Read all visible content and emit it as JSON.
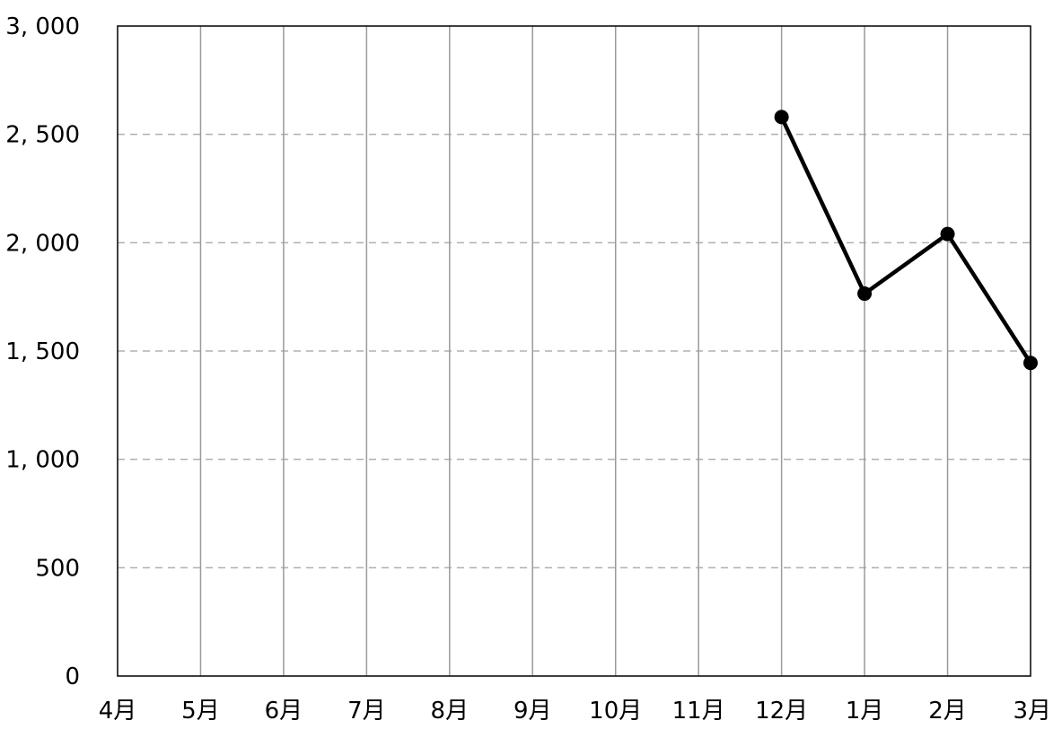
{
  "chart_data": {
    "type": "line",
    "title": "",
    "xlabel": "",
    "ylabel": "",
    "categories": [
      "4月",
      "5月",
      "6月",
      "7月",
      "8月",
      "9月",
      "10月",
      "11月",
      "12月",
      "1月",
      "2月",
      "3月"
    ],
    "y_tick_labels": [
      "0",
      "500",
      "1, 000",
      "1, 500",
      "2, 000",
      "2, 500",
      "3, 000"
    ],
    "y_ticks": [
      0,
      500,
      1000,
      1500,
      2000,
      2500,
      3000
    ],
    "ylim": [
      0,
      3000
    ],
    "series": [
      {
        "values": [
          null,
          null,
          null,
          null,
          null,
          null,
          null,
          null,
          2580,
          1765,
          2040,
          1445
        ]
      }
    ],
    "grid": {
      "horizontal": "dashed",
      "vertical": "solid"
    },
    "legend": "none",
    "colors": {
      "line": "#000000",
      "marker": "#000000",
      "h_grid": "#b0b0b0",
      "v_grid": "#9a9a9a",
      "frame": "#000000"
    }
  }
}
